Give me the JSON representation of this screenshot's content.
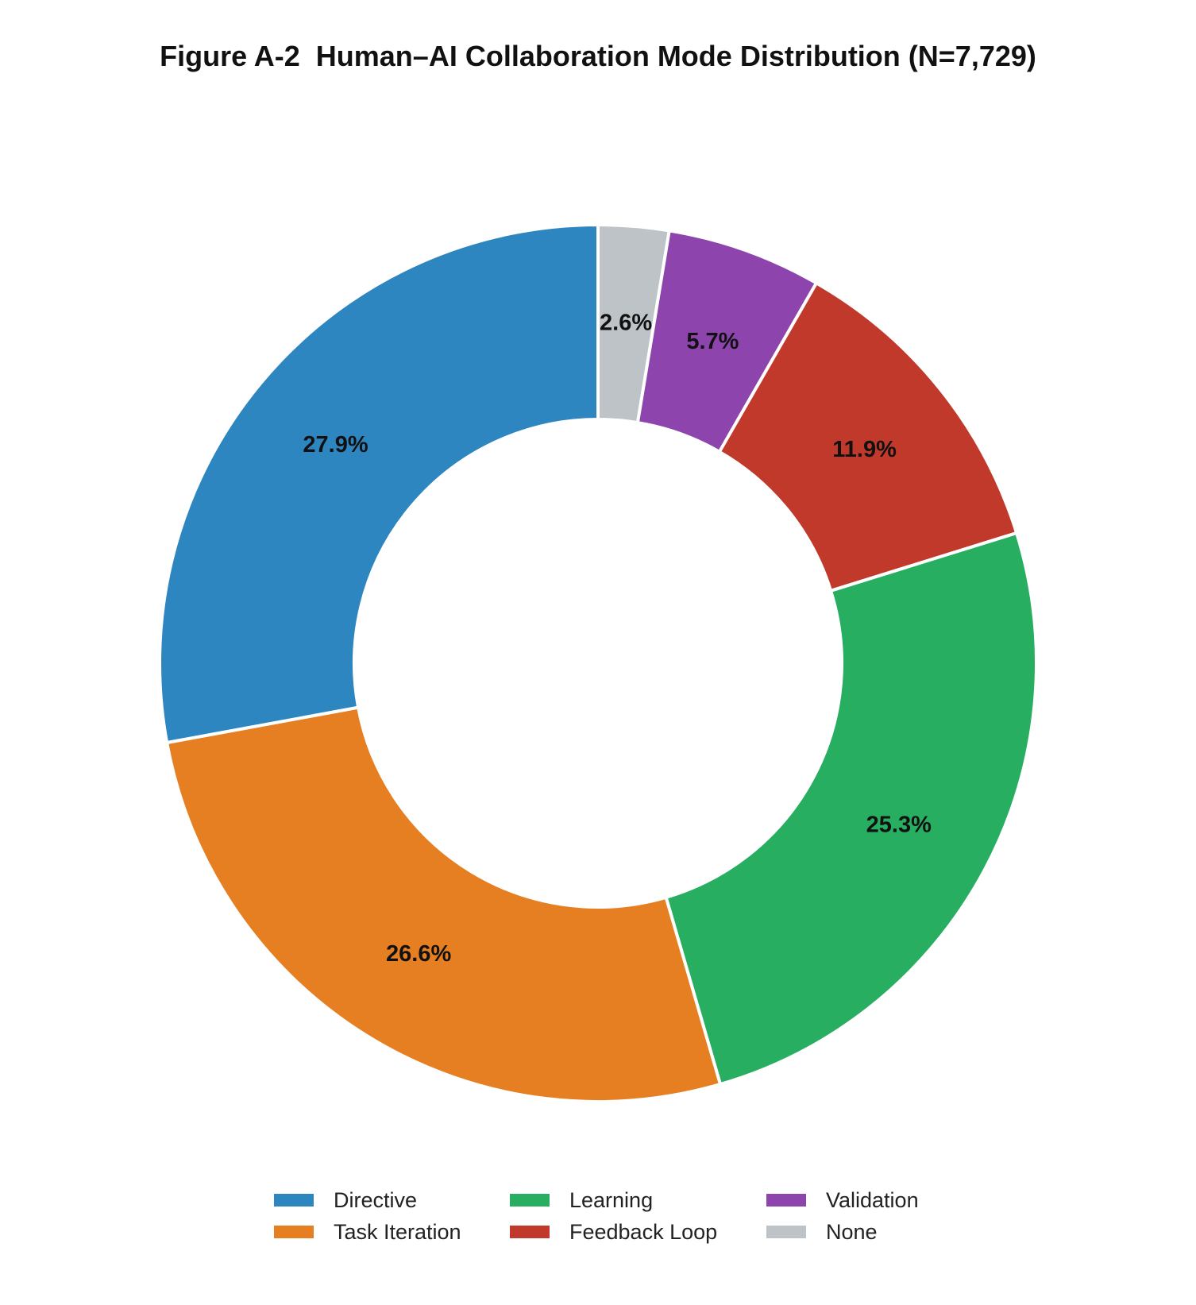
{
  "chart_data": {
    "type": "pie",
    "title": "Figure A-2  Human–AI Collaboration Mode Distribution (N=7,729)",
    "donut": true,
    "start_angle_deg": 90,
    "direction": "clockwise",
    "legend_position": "bottom",
    "slices": [
      {
        "name": "None",
        "value": 2.6,
        "label": "2.6%",
        "color": "#bdc3c7"
      },
      {
        "name": "Validation",
        "value": 5.7,
        "label": "5.7%",
        "color": "#8e44ad"
      },
      {
        "name": "Feedback Loop",
        "value": 11.9,
        "label": "11.9%",
        "color": "#c0392b"
      },
      {
        "name": "Learning",
        "value": 25.3,
        "label": "25.3%",
        "color": "#27ae60"
      },
      {
        "name": "Task Iteration",
        "value": 26.6,
        "label": "26.6%",
        "color": "#e67e22"
      },
      {
        "name": "Directive",
        "value": 27.9,
        "label": "27.9%",
        "color": "#2e86c1"
      }
    ],
    "legend": [
      {
        "name": "Directive",
        "color": "#2e86c1"
      },
      {
        "name": "Task Iteration",
        "color": "#e67e22"
      },
      {
        "name": "Learning",
        "color": "#27ae60"
      },
      {
        "name": "Feedback Loop",
        "color": "#c0392b"
      },
      {
        "name": "Validation",
        "color": "#8e44ad"
      },
      {
        "name": "None",
        "color": "#bdc3c7"
      }
    ]
  }
}
